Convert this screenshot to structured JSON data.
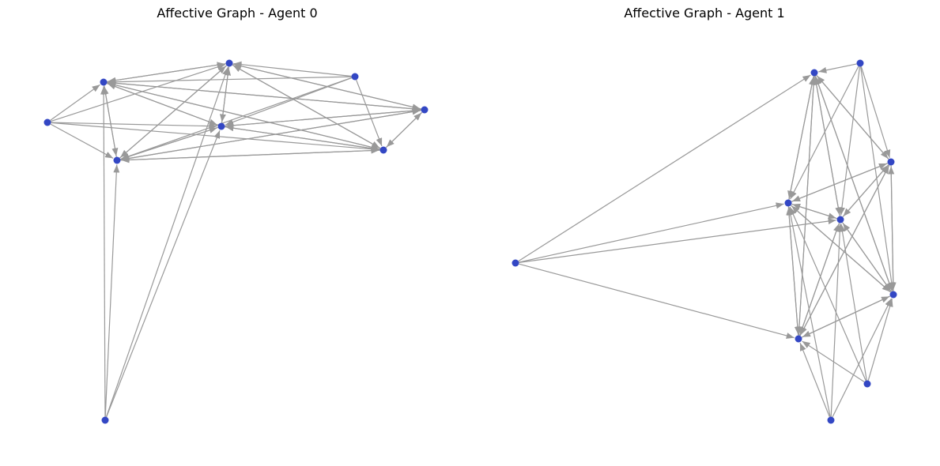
{
  "graphs": [
    {
      "title": "Affective Graph - Agent 0",
      "node_color": "#3347c4",
      "edge_color": "#999999",
      "nodes": [
        {
          "id": "a0"
        },
        {
          "id": "a1"
        },
        {
          "id": "a2"
        },
        {
          "id": "a3"
        },
        {
          "id": "a4"
        },
        {
          "id": "a5"
        },
        {
          "id": "a6"
        },
        {
          "id": "a7"
        },
        {
          "id": "a8"
        }
      ],
      "edges": [
        [
          "a8",
          "a0"
        ],
        [
          "a8",
          "a1"
        ],
        [
          "a8",
          "a3"
        ],
        [
          "a8",
          "a4"
        ],
        [
          "a2",
          "a0"
        ],
        [
          "a2",
          "a1"
        ],
        [
          "a2",
          "a3"
        ],
        [
          "a2",
          "a4"
        ],
        [
          "a2",
          "a7"
        ],
        [
          "a5",
          "a0"
        ],
        [
          "a5",
          "a1"
        ],
        [
          "a5",
          "a3"
        ],
        [
          "a5",
          "a4"
        ],
        [
          "a5",
          "a7"
        ],
        [
          "a0",
          "a6"
        ],
        [
          "a0",
          "a4"
        ],
        [
          "a0",
          "a7"
        ],
        [
          "a0",
          "a3"
        ],
        [
          "a0",
          "a1"
        ],
        [
          "a1",
          "a6"
        ],
        [
          "a1",
          "a4"
        ],
        [
          "a1",
          "a7"
        ],
        [
          "a1",
          "a3"
        ],
        [
          "a1",
          "a0"
        ],
        [
          "a6",
          "a0"
        ],
        [
          "a6",
          "a1"
        ],
        [
          "a6",
          "a4"
        ],
        [
          "a6",
          "a7"
        ],
        [
          "a6",
          "a3"
        ],
        [
          "a3",
          "a0"
        ],
        [
          "a3",
          "a1"
        ],
        [
          "a3",
          "a6"
        ],
        [
          "a3",
          "a7"
        ],
        [
          "a3",
          "a4"
        ],
        [
          "a7",
          "a0"
        ],
        [
          "a7",
          "a1"
        ],
        [
          "a7",
          "a6"
        ],
        [
          "a7",
          "a3"
        ],
        [
          "a7",
          "a4"
        ],
        [
          "a4",
          "a0"
        ],
        [
          "a4",
          "a1"
        ],
        [
          "a4",
          "a6"
        ],
        [
          "a4",
          "a7"
        ],
        [
          "a4",
          "a3"
        ]
      ]
    },
    {
      "title": "Affective Graph - Agent 1",
      "node_color": "#3347c4",
      "edge_color": "#999999",
      "nodes": [
        {
          "id": "b0"
        },
        {
          "id": "b1"
        },
        {
          "id": "b2"
        },
        {
          "id": "b3"
        },
        {
          "id": "b4"
        },
        {
          "id": "b5"
        },
        {
          "id": "b6"
        },
        {
          "id": "b7"
        },
        {
          "id": "b8"
        },
        {
          "id": "b9"
        }
      ],
      "edges": [
        [
          "b2",
          "b0"
        ],
        [
          "b2",
          "b4"
        ],
        [
          "b2",
          "b5"
        ],
        [
          "b2",
          "b7"
        ],
        [
          "b1",
          "b0"
        ],
        [
          "b1",
          "b3"
        ],
        [
          "b1",
          "b4"
        ],
        [
          "b1",
          "b5"
        ],
        [
          "b1",
          "b6"
        ],
        [
          "b8",
          "b4"
        ],
        [
          "b8",
          "b5"
        ],
        [
          "b8",
          "b6"
        ],
        [
          "b8",
          "b7"
        ],
        [
          "b9",
          "b4"
        ],
        [
          "b9",
          "b5"
        ],
        [
          "b9",
          "b6"
        ],
        [
          "b9",
          "b7"
        ],
        [
          "b0",
          "b3"
        ],
        [
          "b0",
          "b4"
        ],
        [
          "b0",
          "b5"
        ],
        [
          "b0",
          "b6"
        ],
        [
          "b0",
          "b7"
        ],
        [
          "b3",
          "b0"
        ],
        [
          "b3",
          "b4"
        ],
        [
          "b3",
          "b5"
        ],
        [
          "b3",
          "b6"
        ],
        [
          "b3",
          "b7"
        ],
        [
          "b4",
          "b0"
        ],
        [
          "b4",
          "b3"
        ],
        [
          "b4",
          "b5"
        ],
        [
          "b4",
          "b6"
        ],
        [
          "b4",
          "b7"
        ],
        [
          "b5",
          "b0"
        ],
        [
          "b5",
          "b3"
        ],
        [
          "b5",
          "b4"
        ],
        [
          "b5",
          "b6"
        ],
        [
          "b5",
          "b7"
        ],
        [
          "b6",
          "b0"
        ],
        [
          "b6",
          "b3"
        ],
        [
          "b6",
          "b4"
        ],
        [
          "b6",
          "b5"
        ],
        [
          "b6",
          "b7"
        ],
        [
          "b7",
          "b0"
        ],
        [
          "b7",
          "b3"
        ],
        [
          "b7",
          "b4"
        ],
        [
          "b7",
          "b5"
        ],
        [
          "b7",
          "b6"
        ]
      ]
    }
  ]
}
